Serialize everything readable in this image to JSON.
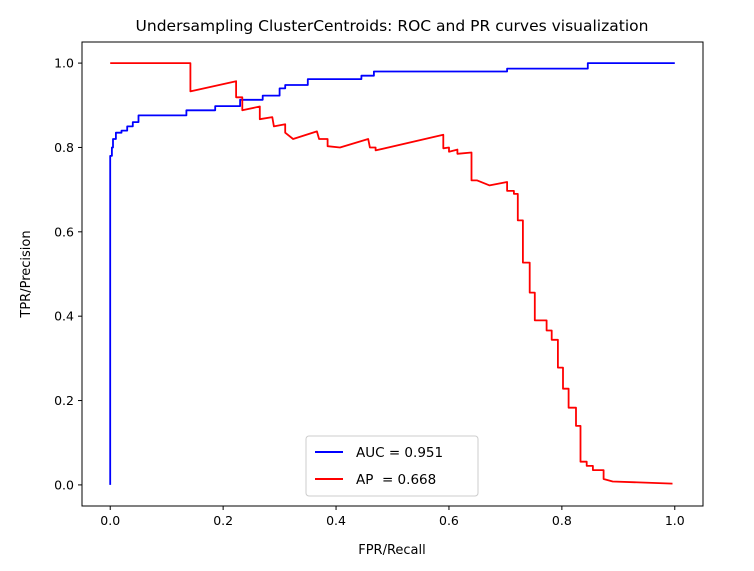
{
  "chart_data": {
    "type": "line",
    "title": "Undersampling ClusterCentroids: ROC and PR curves visualization",
    "xlabel": "FPR/Recall",
    "ylabel": "TPR/Precision",
    "xlim": [
      -0.05,
      1.05
    ],
    "ylim": [
      -0.05,
      1.05
    ],
    "xticks": [
      "0.0",
      "0.2",
      "0.4",
      "0.6",
      "0.8",
      "1.0"
    ],
    "yticks": [
      "0.0",
      "0.2",
      "0.4",
      "0.6",
      "0.8",
      "1.0"
    ],
    "grid": false,
    "legend_position": "lower-center",
    "series": [
      {
        "name": "AUC = 0.951",
        "color": "#0000ff",
        "points": [
          [
            0,
            0
          ],
          [
            0,
            0.78
          ],
          [
            0.003,
            0.78
          ],
          [
            0.003,
            0.8
          ],
          [
            0.005,
            0.8
          ],
          [
            0.005,
            0.82
          ],
          [
            0.01,
            0.82
          ],
          [
            0.01,
            0.835
          ],
          [
            0.02,
            0.835
          ],
          [
            0.02,
            0.84
          ],
          [
            0.03,
            0.84
          ],
          [
            0.03,
            0.85
          ],
          [
            0.04,
            0.85
          ],
          [
            0.04,
            0.86
          ],
          [
            0.05,
            0.86
          ],
          [
            0.05,
            0.876
          ],
          [
            0.135,
            0.876
          ],
          [
            0.135,
            0.888
          ],
          [
            0.186,
            0.888
          ],
          [
            0.186,
            0.898
          ],
          [
            0.23,
            0.898
          ],
          [
            0.23,
            0.913
          ],
          [
            0.27,
            0.913
          ],
          [
            0.27,
            0.923
          ],
          [
            0.3,
            0.923
          ],
          [
            0.3,
            0.94
          ],
          [
            0.31,
            0.94
          ],
          [
            0.31,
            0.948
          ],
          [
            0.35,
            0.948
          ],
          [
            0.35,
            0.962
          ],
          [
            0.445,
            0.962
          ],
          [
            0.445,
            0.97
          ],
          [
            0.467,
            0.97
          ],
          [
            0.467,
            0.98
          ],
          [
            0.703,
            0.98
          ],
          [
            0.703,
            0.987
          ],
          [
            0.846,
            0.987
          ],
          [
            0.846,
            1.0
          ],
          [
            1.0,
            1.0
          ]
        ]
      },
      {
        "name": "AP  = 0.668",
        "color": "#ff0000",
        "points": [
          [
            0,
            1.0
          ],
          [
            0.142,
            1.0
          ],
          [
            0.142,
            0.933
          ],
          [
            0.223,
            0.957
          ],
          [
            0.223,
            0.919
          ],
          [
            0.234,
            0.919
          ],
          [
            0.234,
            0.888
          ],
          [
            0.265,
            0.897
          ],
          [
            0.265,
            0.867
          ],
          [
            0.287,
            0.872
          ],
          [
            0.29,
            0.85
          ],
          [
            0.31,
            0.855
          ],
          [
            0.31,
            0.835
          ],
          [
            0.324,
            0.82
          ],
          [
            0.366,
            0.838
          ],
          [
            0.37,
            0.82
          ],
          [
            0.385,
            0.82
          ],
          [
            0.385,
            0.803
          ],
          [
            0.407,
            0.8
          ],
          [
            0.457,
            0.82
          ],
          [
            0.46,
            0.8
          ],
          [
            0.47,
            0.8
          ],
          [
            0.47,
            0.793
          ],
          [
            0.59,
            0.83
          ],
          [
            0.59,
            0.798
          ],
          [
            0.6,
            0.8
          ],
          [
            0.6,
            0.79
          ],
          [
            0.615,
            0.795
          ],
          [
            0.615,
            0.785
          ],
          [
            0.64,
            0.788
          ],
          [
            0.64,
            0.722
          ],
          [
            0.65,
            0.722
          ],
          [
            0.672,
            0.71
          ],
          [
            0.703,
            0.718
          ],
          [
            0.703,
            0.697
          ],
          [
            0.715,
            0.697
          ],
          [
            0.715,
            0.69
          ],
          [
            0.722,
            0.69
          ],
          [
            0.722,
            0.627
          ],
          [
            0.731,
            0.627
          ],
          [
            0.731,
            0.527
          ],
          [
            0.743,
            0.527
          ],
          [
            0.743,
            0.456
          ],
          [
            0.752,
            0.456
          ],
          [
            0.752,
            0.39
          ],
          [
            0.773,
            0.39
          ],
          [
            0.773,
            0.366
          ],
          [
            0.782,
            0.366
          ],
          [
            0.782,
            0.344
          ],
          [
            0.793,
            0.344
          ],
          [
            0.793,
            0.278
          ],
          [
            0.802,
            0.278
          ],
          [
            0.802,
            0.228
          ],
          [
            0.812,
            0.228
          ],
          [
            0.812,
            0.183
          ],
          [
            0.825,
            0.183
          ],
          [
            0.825,
            0.14
          ],
          [
            0.833,
            0.14
          ],
          [
            0.833,
            0.055
          ],
          [
            0.844,
            0.055
          ],
          [
            0.844,
            0.045
          ],
          [
            0.855,
            0.045
          ],
          [
            0.855,
            0.035
          ],
          [
            0.874,
            0.035
          ],
          [
            0.874,
            0.014
          ],
          [
            0.89,
            0.008
          ],
          [
            0.996,
            0.003
          ]
        ]
      }
    ]
  }
}
